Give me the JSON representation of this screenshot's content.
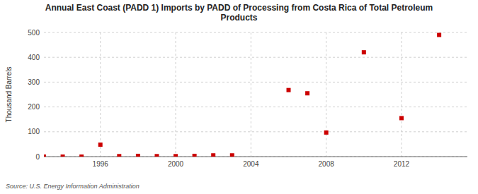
{
  "chart_data": {
    "type": "scatter",
    "title": "Annual East Coast (PADD 1) Imports by PADD of Processing from Costa Rica of Total Petroleum\nProducts",
    "y_label": "Thousand Barrels",
    "source": "Source: U.S. Energy Information Administration",
    "color": "#cc0000",
    "marker": "square",
    "grid": true,
    "xlim": [
      1993.0,
      2015.5
    ],
    "ylim": [
      0,
      500
    ],
    "xticks": [
      1996,
      2000,
      2004,
      2008,
      2012
    ],
    "yticks": [
      0,
      100,
      200,
      300,
      400,
      500
    ],
    "x": [
      1993,
      1994,
      1995,
      1996,
      1997,
      1998,
      1999,
      2000,
      2001,
      2002,
      2003,
      2006,
      2007,
      2008,
      2010,
      2012,
      2014
    ],
    "values": [
      0,
      0,
      0,
      48,
      2,
      3,
      2,
      2,
      3,
      5,
      5,
      268,
      255,
      97,
      420,
      155,
      490
    ]
  }
}
